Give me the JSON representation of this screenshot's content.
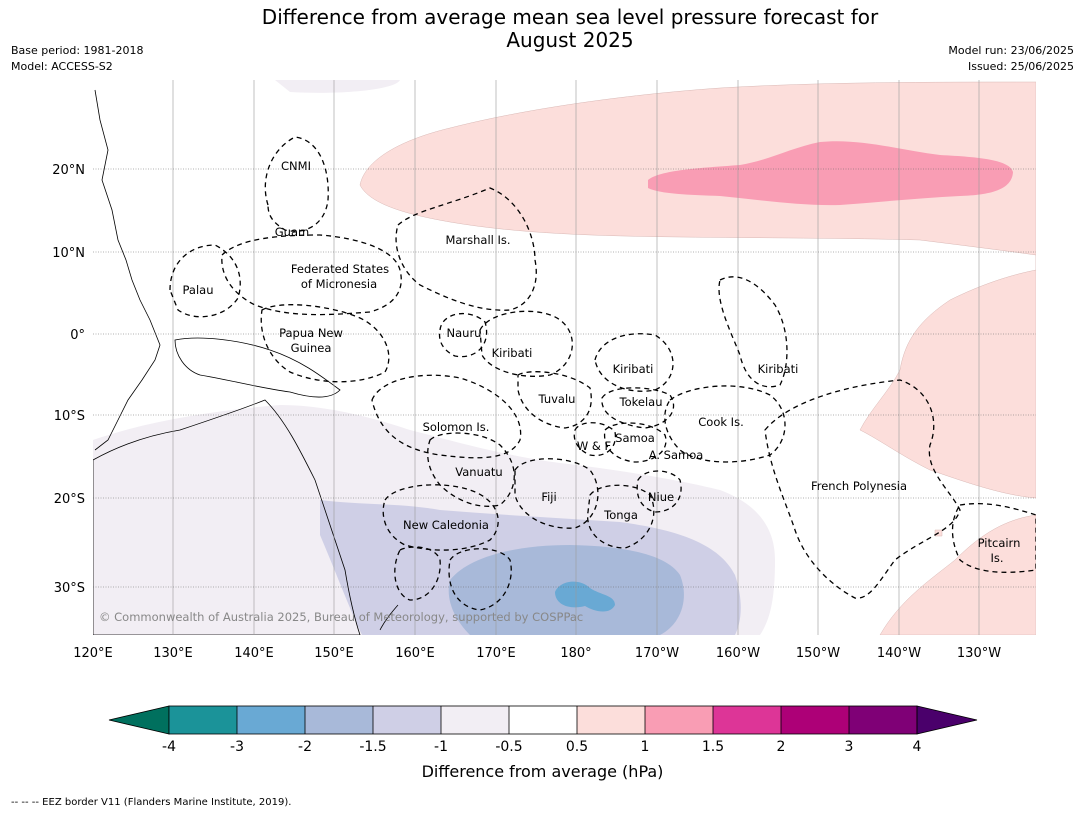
{
  "title": {
    "line1": "Difference from average mean sea level pressure forecast for",
    "line2": "August 2025"
  },
  "meta": {
    "base_period": "Base period: 1981-2018",
    "model": "Model: ACCESS-S2",
    "model_run": "Model run: 23/06/2025",
    "issued": "Issued: 25/06/2025"
  },
  "map": {
    "copyright": "© Commonwealth of Australia 2025, Bureau of Meteorology, supported by COSPPac",
    "lon_ticks": [
      "120°E",
      "130°E",
      "140°E",
      "150°E",
      "160°E",
      "170°E",
      "180°",
      "170°W",
      "160°W",
      "150°W",
      "140°W",
      "130°W"
    ],
    "lat_ticks": [
      "20°N",
      "10°N",
      "0°",
      "10°S",
      "20°S",
      "30°S"
    ],
    "places": {
      "cnmi": "CNMI",
      "guam": "Guam",
      "marshall": "Marshall Is.",
      "fsm1": "Federated States",
      "fsm2": "of Micronesia",
      "palau": "Palau",
      "png1": "Papua New",
      "png2": "Guinea",
      "nauru": "Nauru",
      "kiribati_w": "Kiribati",
      "kiribati_c": "Kiribati",
      "kiribati_e": "Kiribati",
      "tuvalu": "Tuvalu",
      "tokelau": "Tokelau",
      "cook": "Cook Is.",
      "solomon": "Solomon Is.",
      "samoa": "Samoa",
      "wf": "W & F",
      "asamoa": "A. Samoa",
      "vanuatu": "Vanuatu",
      "fiji": "Fiji",
      "niue": "Niue",
      "tonga": "Tonga",
      "frpoly": "French Polynesia",
      "newcal": "New Caledonia",
      "pitcairn1": "Pitcairn",
      "pitcairn2": "Is."
    }
  },
  "colorbar": {
    "label": "Difference from average (hPa)",
    "ticks": [
      "-4",
      "-3",
      "-2",
      "-1.5",
      "-1",
      "-0.5",
      "0.5",
      "1",
      "1.5",
      "2",
      "3",
      "4"
    ],
    "colors": {
      "ext_low": "#00705e",
      "c1": "#1b9399",
      "c2": "#69a9d4",
      "c3": "#a8b9d9",
      "c4": "#cfcfe6",
      "c5": "#f2eef4",
      "c6": "#ffffff",
      "c7": "#fcdedb",
      "c8": "#f99db4",
      "c9": "#dd3597",
      "c10": "#ad0077",
      "c11": "#7f0076",
      "ext_high": "#4a006b"
    }
  },
  "footnote": "--  --  -- EEZ border V11 (Flanders Marine Institute, 2019)."
}
